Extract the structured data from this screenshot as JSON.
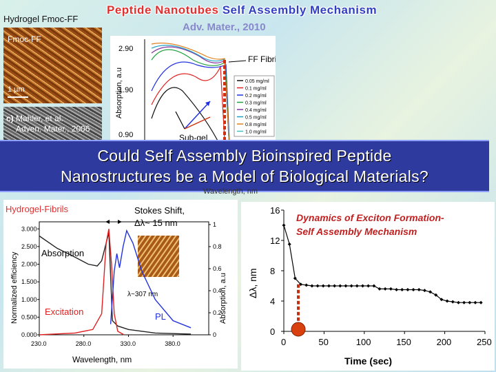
{
  "title_part1": "Peptide Nanotubes",
  "title_part2": "Self Assembly Mechanism",
  "citation": "Adv. Mater., 2010",
  "micro_top": {
    "label": "Hydrogel Fmoc-FF",
    "inner": "Fmoc-FF",
    "scale": "1 µm"
  },
  "micro_left": {
    "label": "c)",
    "ref1": "Mahler, et al.",
    "ref2": "Adven. Mater., 2006"
  },
  "banner": {
    "line1": "Could  Self Assembly Bioinspired  Peptide",
    "line2": "Nanostructures be a  Model of Biological Materials?"
  },
  "chart_absorption": {
    "type": "line",
    "ylabel": "Absorption, a.u",
    "xlabel": "Wavelength, nm",
    "yticks": [
      "2.90",
      "1.90",
      "0.90"
    ],
    "annotation_fibrils": "FF Fibrils",
    "annotation_subgel": "Sub-gel",
    "legend": [
      "0.05 mg/ml",
      "0.1 mg/ml",
      "0.2 mg/ml",
      "0.3 mg/ml",
      "0.4 mg/ml",
      "0.5 mg/ml",
      "0.8 mg/ml",
      "1.0 mg/ml"
    ],
    "colors": [
      "#111111",
      "#e02020",
      "#2030e0",
      "#20a040",
      "#8030a0",
      "#20a0c0",
      "#e08020",
      "#40c0c0"
    ]
  },
  "chart_pl": {
    "type": "line",
    "title": "Hydrogel-Fibrils",
    "stokes1": "Stokes Shift,",
    "stokes2": "Δλ~ 15 nm",
    "ylabel_left": "Normalized efficiency",
    "ylabel_right": "Absorption, a.u",
    "xlabel": "Wavelength, nm",
    "xticks": [
      "230.0",
      "280.0",
      "330.0",
      "380.0"
    ],
    "yticks_left": [
      "3.000",
      "2.500",
      "2.000",
      "1.500",
      "1.000",
      "0.500",
      "0.000"
    ],
    "yticks_right": [
      "1",
      "0.8",
      "0.6",
      "0.4",
      "0.2",
      "0"
    ],
    "label_absorption": "Absorption",
    "label_excitation": "Excitation",
    "label_pl": "PL",
    "label_lambda": "λ~307 nm",
    "series": [
      {
        "name": "Absorption",
        "color": "#222222",
        "x": [
          230,
          250,
          270,
          285,
          295,
          300,
          305,
          308,
          312,
          318,
          330,
          360,
          400
        ],
        "y": [
          2.8,
          2.45,
          2.2,
          2.0,
          1.95,
          2.1,
          2.6,
          2.9,
          0.4,
          0.25,
          0.15,
          0.05,
          0.02
        ]
      },
      {
        "name": "Excitation",
        "color": "#e02020",
        "x": [
          230,
          270,
          290,
          300,
          305,
          308,
          311,
          314,
          318,
          325
        ],
        "y": [
          0.0,
          0.05,
          0.15,
          0.6,
          2.6,
          3.0,
          2.0,
          0.6,
          0.1,
          0.0
        ]
      },
      {
        "name": "PL",
        "color": "#2030e0",
        "x": [
          310,
          314,
          317,
          320,
          324,
          328,
          335,
          345,
          360,
          380,
          400
        ],
        "y": [
          0.3,
          1.8,
          2.3,
          1.9,
          2.5,
          2.95,
          2.6,
          1.8,
          1.0,
          0.4,
          0.2
        ]
      }
    ]
  },
  "chart_dynamics": {
    "type": "line",
    "title_line1": "Dynamics of Exciton Formation-",
    "title_line2": "Self Assembly Mechanism",
    "xlabel": "Time (sec)",
    "ylabel": "Δλ, nm",
    "xlim": [
      0,
      250
    ],
    "ylim": [
      0,
      16
    ],
    "xticks": [
      "0",
      "50",
      "100",
      "150",
      "200",
      "250"
    ],
    "yticks": [
      "0",
      "4",
      "8",
      "12",
      "16"
    ],
    "x": [
      0,
      7,
      14,
      21,
      28,
      35,
      42,
      49,
      56,
      63,
      70,
      77,
      84,
      91,
      98,
      105,
      112,
      119,
      126,
      133,
      140,
      147,
      154,
      161,
      168,
      175,
      182,
      189,
      196,
      203,
      210,
      217,
      224,
      231,
      238,
      245
    ],
    "y": [
      14,
      11.5,
      7,
      6.2,
      6.1,
      6.0,
      6.0,
      6.0,
      6.0,
      6.0,
      6.0,
      6.0,
      6.0,
      6.0,
      6.0,
      6.0,
      6.0,
      5.6,
      5.6,
      5.6,
      5.5,
      5.5,
      5.5,
      5.5,
      5.5,
      5.4,
      5.2,
      4.8,
      4.2,
      4.0,
      3.9,
      3.8,
      3.8,
      3.8,
      3.8,
      3.8
    ],
    "marker_x": 18
  }
}
